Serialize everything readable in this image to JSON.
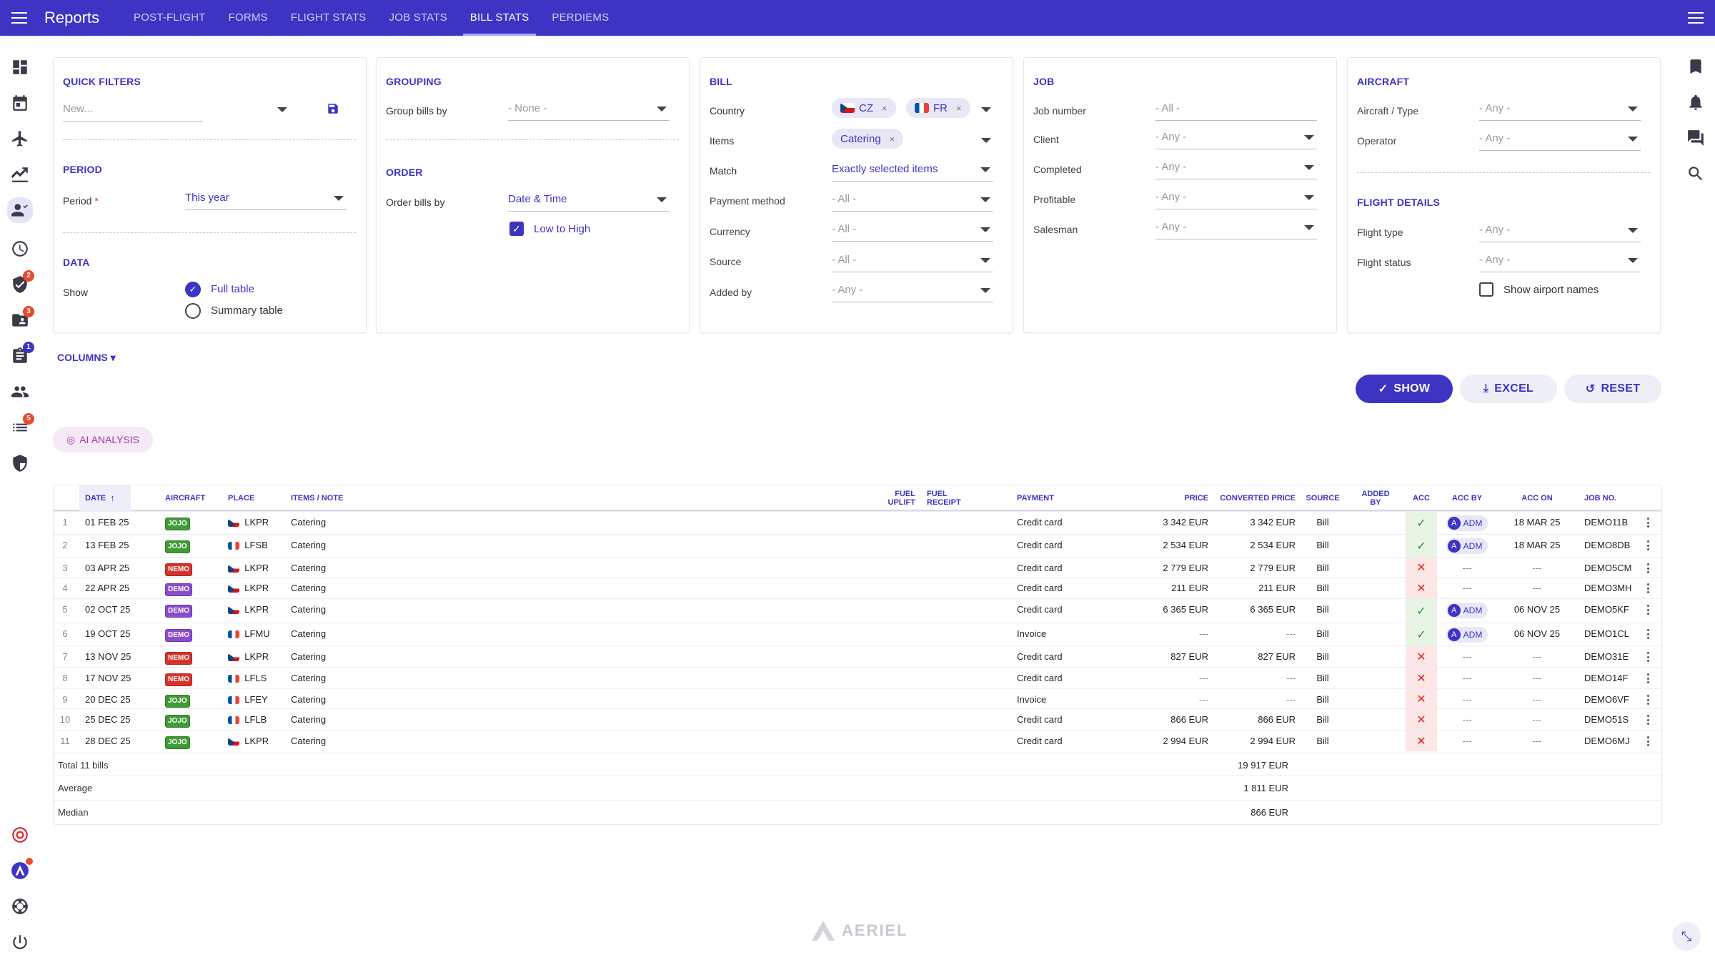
{
  "app": {
    "title": "Reports"
  },
  "tabs": [
    {
      "label": "POST-FLIGHT"
    },
    {
      "label": "FORMS"
    },
    {
      "label": "FLIGHT STATS"
    },
    {
      "label": "JOB STATS"
    },
    {
      "label": "BILL STATS",
      "active": true
    },
    {
      "label": "PERDIEMS"
    }
  ],
  "sidebar_badges": {
    "shield_check": "2",
    "folder": "3",
    "clipboard": "1",
    "list": "5"
  },
  "quick_filters": {
    "title": "QUICK FILTERS",
    "placeholder": "New...",
    "period_title": "PERIOD",
    "period_label": "Period",
    "period_required": "*",
    "period_value": "This year",
    "data_title": "DATA",
    "show_label": "Show",
    "opt_full": "Full table",
    "opt_summary": "Summary table"
  },
  "grouping": {
    "title": "GROUPING",
    "group_label": "Group bills by",
    "group_value": "- None -",
    "order_title": "ORDER",
    "order_label": "Order bills by",
    "order_value": "Date & Time",
    "low_to_high": "Low to High"
  },
  "bill": {
    "title": "BILL",
    "country_label": "Country",
    "country_chips": [
      "CZ",
      "FR"
    ],
    "items_label": "Items",
    "items_chip": "Catering",
    "match_label": "Match",
    "match_value": "Exactly selected items",
    "payment_label": "Payment method",
    "payment_value": "- All -",
    "currency_label": "Currency",
    "currency_value": "- All -",
    "source_label": "Source",
    "source_value": "- All -",
    "added_label": "Added by",
    "added_value": "- Any -"
  },
  "job": {
    "title": "JOB",
    "jobnum_label": "Job number",
    "jobnum_value": "- All -",
    "client_label": "Client",
    "client_value": "- Any -",
    "completed_label": "Completed",
    "completed_value": "- Any -",
    "profitable_label": "Profitable",
    "profitable_value": "- Any -",
    "salesman_label": "Salesman",
    "salesman_value": "- Any -"
  },
  "aircraft": {
    "title": "AIRCRAFT",
    "type_label": "Aircraft / Type",
    "type_value": "- Any -",
    "operator_label": "Operator",
    "operator_value": "- Any -",
    "flight_title": "FLIGHT DETAILS",
    "ftype_label": "Flight type",
    "ftype_value": "- Any -",
    "fstatus_label": "Flight status",
    "fstatus_value": "- Any -",
    "airport_names": "Show airport names"
  },
  "columns_link": "COLUMNS ▾",
  "actions": {
    "show": "SHOW",
    "excel": "EXCEL",
    "reset": "RESET"
  },
  "ai_analysis": "AI ANALYSIS",
  "table": {
    "headers": {
      "date": "DATE",
      "aircraft": "AIRCRAFT",
      "place": "PLACE",
      "items": "ITEMS / NOTE",
      "fuel_uplift": "FUEL UPLIFT",
      "fuel_receipt": "FUEL RECEIPT",
      "payment": "PAYMENT",
      "price": "PRICE",
      "converted": "CONVERTED PRICE",
      "source": "SOURCE",
      "added_by": "ADDED BY",
      "acc": "ACC",
      "acc_by": "ACC BY",
      "acc_on": "ACC ON",
      "job_no": "JOB NO."
    },
    "rows": [
      {
        "n": "1",
        "date": "01 FEB 25",
        "ac": "JOJO",
        "acColor": "#3f9c35",
        "flag": "cz",
        "place": "LKPR",
        "items": "Catering",
        "payment": "Credit card",
        "price": "3 342 EUR",
        "conv": "3 342 EUR",
        "source": "Bill",
        "acc": "ok",
        "accby": "ADM",
        "accon": "18 MAR 25",
        "job": "DEMO11B"
      },
      {
        "n": "2",
        "date": "13 FEB 25",
        "ac": "JOJO",
        "acColor": "#3f9c35",
        "flag": "fr",
        "place": "LFSB",
        "items": "Catering",
        "payment": "Credit card",
        "price": "2 534 EUR",
        "conv": "2 534 EUR",
        "source": "Bill",
        "acc": "ok",
        "accby": "ADM",
        "accon": "18 MAR 25",
        "job": "DEMO8DB"
      },
      {
        "n": "3",
        "date": "03 APR 25",
        "ac": "NEMO",
        "acColor": "#d6322b",
        "flag": "cz",
        "place": "LKPR",
        "items": "Catering",
        "payment": "Credit card",
        "price": "2 779 EUR",
        "conv": "2 779 EUR",
        "source": "Bill",
        "acc": "no",
        "accby": "---",
        "accon": "---",
        "job": "DEMO5CM"
      },
      {
        "n": "4",
        "date": "22 APR 25",
        "ac": "DEMO",
        "acColor": "#8a4ccf",
        "flag": "cz",
        "place": "LKPR",
        "items": "Catering",
        "payment": "Credit card",
        "price": "211 EUR",
        "conv": "211 EUR",
        "source": "Bill",
        "acc": "no",
        "accby": "---",
        "accon": "---",
        "job": "DEMO3MH"
      },
      {
        "n": "5",
        "date": "02 OCT 25",
        "ac": "DEMO",
        "acColor": "#8a4ccf",
        "flag": "cz",
        "place": "LKPR",
        "items": "Catering",
        "payment": "Credit card",
        "price": "6 365 EUR",
        "conv": "6 365 EUR",
        "source": "Bill",
        "acc": "ok",
        "accby": "ADM",
        "accon": "06 NOV 25",
        "job": "DEMO5KF"
      },
      {
        "n": "6",
        "date": "19 OCT 25",
        "ac": "DEMO",
        "acColor": "#8a4ccf",
        "flag": "fr",
        "place": "LFMU",
        "items": "Catering",
        "payment": "Invoice",
        "price": "---",
        "conv": "---",
        "source": "Bill",
        "acc": "ok",
        "accby": "ADM",
        "accon": "06 NOV 25",
        "job": "DEMO1CL"
      },
      {
        "n": "7",
        "date": "13 NOV 25",
        "ac": "NEMO",
        "acColor": "#d6322b",
        "flag": "cz",
        "place": "LKPR",
        "items": "Catering",
        "payment": "Credit card",
        "price": "827 EUR",
        "conv": "827 EUR",
        "source": "Bill",
        "acc": "no",
        "accby": "---",
        "accon": "---",
        "job": "DEMO31E"
      },
      {
        "n": "8",
        "date": "17 NOV 25",
        "ac": "NEMO",
        "acColor": "#d6322b",
        "flag": "fr",
        "place": "LFLS",
        "items": "Catering",
        "payment": "Credit card",
        "price": "---",
        "conv": "---",
        "source": "Bill",
        "acc": "no",
        "accby": "---",
        "accon": "---",
        "job": "DEMO14F"
      },
      {
        "n": "9",
        "date": "20 DEC 25",
        "ac": "JOJO",
        "acColor": "#3f9c35",
        "flag": "fr",
        "place": "LFEY",
        "items": "Catering",
        "payment": "Invoice",
        "price": "---",
        "conv": "---",
        "source": "Bill",
        "acc": "no",
        "accby": "---",
        "accon": "---",
        "job": "DEMO6VF"
      },
      {
        "n": "10",
        "date": "25 DEC 25",
        "ac": "JOJO",
        "acColor": "#3f9c35",
        "flag": "fr",
        "place": "LFLB",
        "items": "Catering",
        "payment": "Credit card",
        "price": "866 EUR",
        "conv": "866 EUR",
        "source": "Bill",
        "acc": "no",
        "accby": "---",
        "accon": "---",
        "job": "DEMO51S"
      },
      {
        "n": "11",
        "date": "28 DEC 25",
        "ac": "JOJO",
        "acColor": "#3f9c35",
        "flag": "cz",
        "place": "LKPR",
        "items": "Catering",
        "payment": "Credit card",
        "price": "2 994 EUR",
        "conv": "2 994 EUR",
        "source": "Bill",
        "acc": "no",
        "accby": "---",
        "accon": "---",
        "job": "DEMO6MJ"
      }
    ],
    "footer": [
      {
        "label": "Total 11 bills",
        "value": "19 917 EUR"
      },
      {
        "label": "Average",
        "value": "1 811 EUR"
      },
      {
        "label": "Median",
        "value": "866 EUR"
      }
    ]
  },
  "brand": "AERIEL",
  "colors": {
    "primary": "#3d34c4",
    "ok": "#2e8b2e",
    "error": "#e02a2a"
  }
}
